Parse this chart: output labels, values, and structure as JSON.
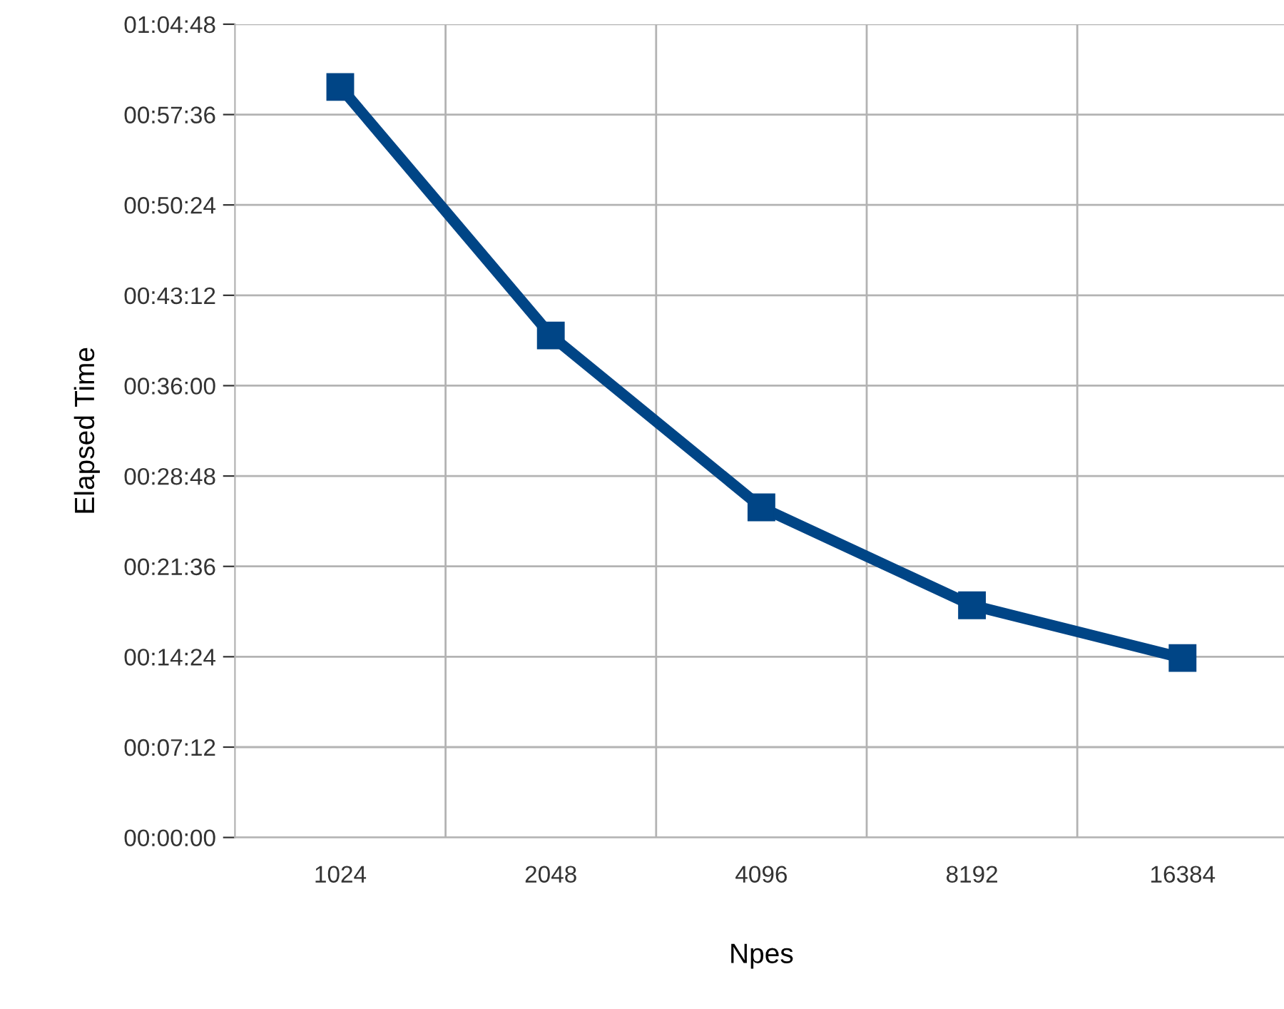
{
  "chart_data": {
    "type": "line",
    "xlabel": "Npes",
    "ylabel": "Elapsed Time",
    "categories": [
      "1024",
      "2048",
      "4096",
      "8192",
      "16384"
    ],
    "series": [
      {
        "color": "#004586",
        "values": [
          59.8,
          40.0,
          26.3,
          18.5,
          14.3
        ]
      }
    ],
    "ylim": [
      0,
      64.8
    ],
    "yticks": [
      {
        "value": 0,
        "label": "00:00:00"
      },
      {
        "value": 7.2,
        "label": "00:07:12"
      },
      {
        "value": 14.4,
        "label": "00:14:24"
      },
      {
        "value": 21.6,
        "label": "00:21:36"
      },
      {
        "value": 28.8,
        "label": "00:28:48"
      },
      {
        "value": 36,
        "label": "00:36:00"
      },
      {
        "value": 43.2,
        "label": "00:43:12"
      },
      {
        "value": 50.4,
        "label": "00:50:24"
      },
      {
        "value": 57.6,
        "label": "00:57:36"
      },
      {
        "value": 64.8,
        "label": "01:04:48"
      }
    ],
    "grid": true,
    "marker": "square",
    "line_style": "solid",
    "legend": false
  }
}
